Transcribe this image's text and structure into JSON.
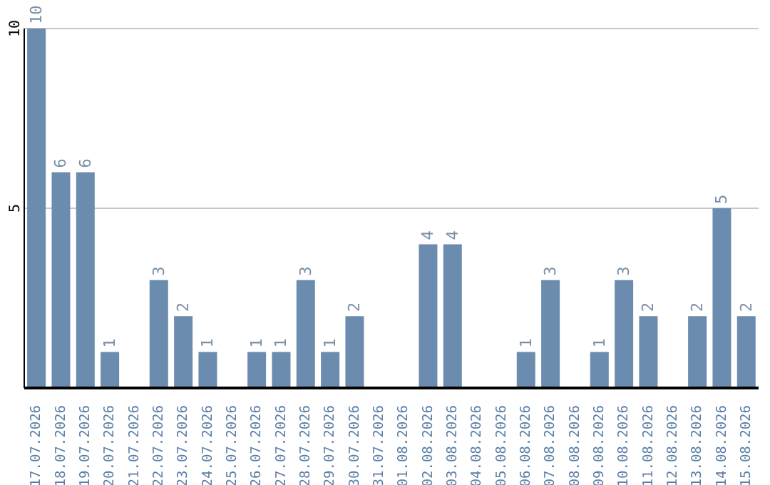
{
  "chart_data": {
    "type": "bar",
    "categories": [
      "17.07.2026",
      "18.07.2026",
      "19.07.2026",
      "20.07.2026",
      "21.07.2026",
      "22.07.2026",
      "23.07.2026",
      "24.07.2026",
      "25.07.2026",
      "26.07.2026",
      "27.07.2026",
      "28.07.2026",
      "29.07.2026",
      "30.07.2026",
      "31.07.2026",
      "01.08.2026",
      "02.08.2026",
      "03.08.2026",
      "04.08.2026",
      "05.08.2026",
      "06.08.2026",
      "07.08.2026",
      "08.08.2026",
      "09.08.2026",
      "10.08.2026",
      "11.08.2026",
      "12.08.2026",
      "13.08.2026",
      "14.08.2026",
      "15.08.2026"
    ],
    "values": [
      10,
      6,
      6,
      1,
      null,
      3,
      2,
      1,
      null,
      1,
      1,
      3,
      1,
      2,
      null,
      null,
      4,
      4,
      null,
      null,
      1,
      3,
      null,
      1,
      3,
      2,
      null,
      2,
      5,
      2
    ],
    "color": "#6b8cae",
    "ylim": [
      0,
      10
    ],
    "yticks": [
      5,
      10
    ],
    "grid": "y",
    "data_labels": true
  }
}
